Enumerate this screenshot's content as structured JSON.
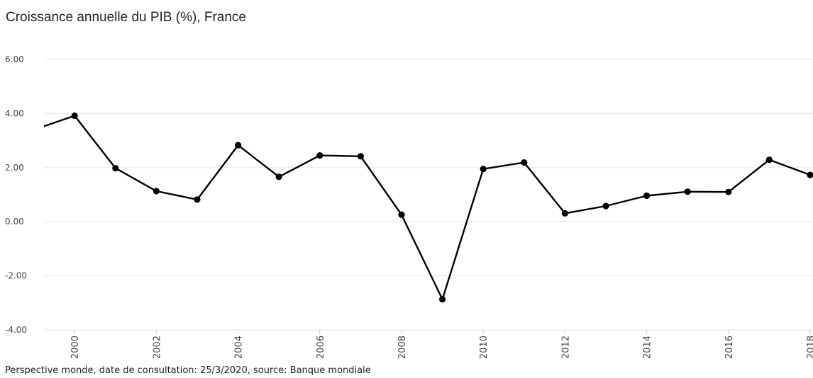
{
  "chart_data": {
    "type": "line",
    "title": "Croissance annuelle du PIB (%), France",
    "xlabel": "",
    "ylabel": "",
    "ylim": [
      -4,
      6
    ],
    "yticks": [
      -4,
      -2,
      0,
      2,
      4,
      6
    ],
    "ytick_labels": [
      "-4.00",
      "-2.00",
      "0.00",
      "2.00",
      "4.00",
      "6.00"
    ],
    "xlim": [
      1999.25,
      2018
    ],
    "xticks": [
      2000,
      2002,
      2004,
      2006,
      2008,
      2010,
      2012,
      2014,
      2016,
      2018
    ],
    "xtick_labels": [
      "2000",
      "2002",
      "2004",
      "2006",
      "2008",
      "2010",
      "2012",
      "2014",
      "2016",
      "2018"
    ],
    "grid": true,
    "series": [
      {
        "x": [
          1999,
          2000,
          2001,
          2002,
          2003,
          2004,
          2005,
          2006,
          2007,
          2008,
          2009,
          2010,
          2011,
          2012,
          2013,
          2014,
          2015,
          2016,
          2017,
          2018
        ],
        "y": [
          3.4,
          3.92,
          1.98,
          1.13,
          0.82,
          2.83,
          1.66,
          2.45,
          2.42,
          0.26,
          -2.87,
          1.95,
          2.19,
          0.31,
          0.58,
          0.96,
          1.11,
          1.1,
          2.29,
          1.73
        ],
        "color": "#000000"
      }
    ]
  },
  "footer": {
    "source": "Perspective monde, date de consultation: 25/3/2020, source: Banque mondiale"
  }
}
